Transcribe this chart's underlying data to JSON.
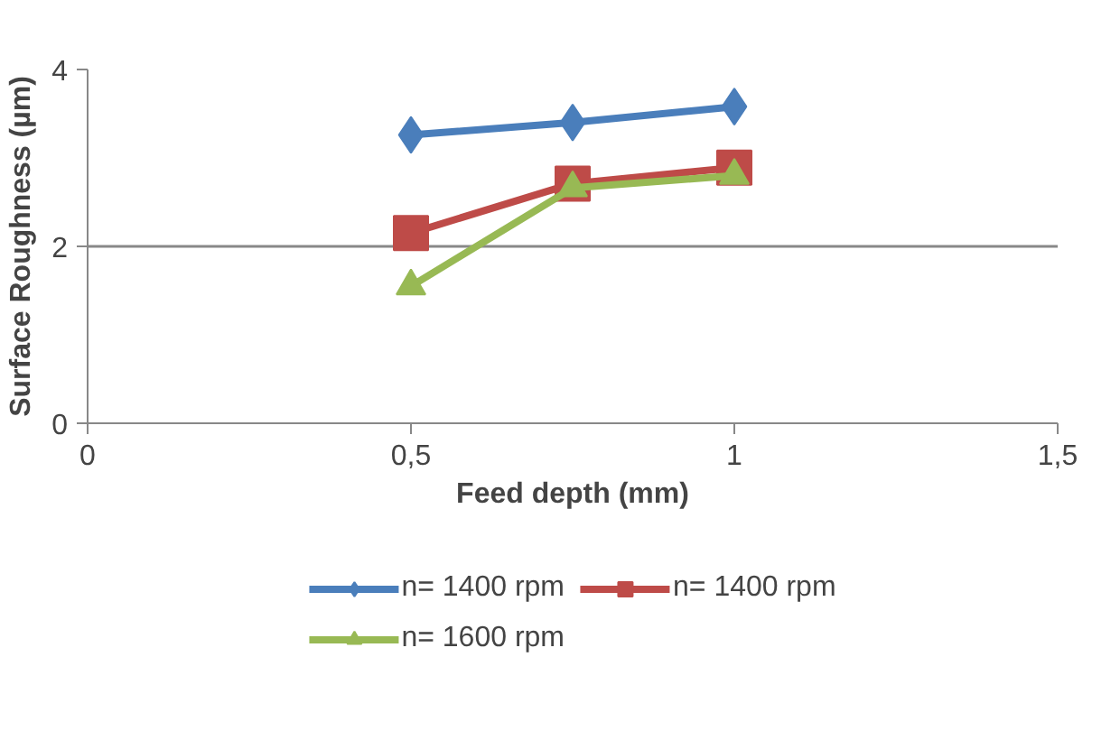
{
  "chart_data": {
    "type": "line",
    "xlabel": "Feed depth (mm)",
    "ylabel": "Surface Roughness (µm)",
    "xlim": [
      0,
      1.5
    ],
    "xticks": [
      0,
      {
        "value": 0.5,
        "label": "0,5"
      },
      1,
      {
        "value": 1.5,
        "label": "1,5"
      }
    ],
    "ylim": [
      0,
      4
    ],
    "yticks": [
      0,
      2,
      4
    ],
    "grid": "y",
    "legend": "bottom",
    "line_style": "solid",
    "series": [
      {
        "name": "n= 1400 rpm",
        "color": "#4a7ebb",
        "marker": "diamond",
        "x": [
          0.5,
          0.75,
          1
        ],
        "values": [
          3.26,
          3.4,
          3.58
        ]
      },
      {
        "name": "n= 1400 rpm",
        "color": "#be4b48",
        "marker": "square",
        "x": [
          0.5,
          0.75,
          1
        ],
        "values": [
          2.15,
          2.71,
          2.89
        ]
      },
      {
        "name": "n= 1600 rpm",
        "color": "#98b954",
        "marker": "triangle",
        "x": [
          0.5,
          0.75,
          1
        ],
        "values": [
          1.55,
          2.66,
          2.8
        ]
      }
    ]
  }
}
